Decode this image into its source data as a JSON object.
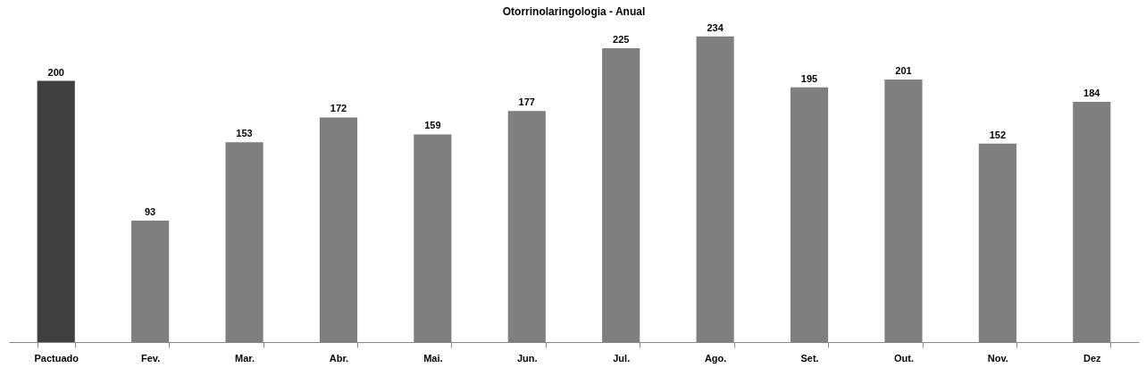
{
  "chart_data": {
    "type": "bar",
    "title": "Otorrinolaringologia - Anual",
    "categories": [
      "Pactuado",
      "Fev.",
      "Mar.",
      "Abr.",
      "Mai.",
      "Jun.",
      "Jul.",
      "Ago.",
      "Set.",
      "Out.",
      "Nov.",
      "Dez"
    ],
    "values": [
      200,
      93,
      153,
      172,
      159,
      177,
      225,
      234,
      195,
      201,
      152,
      184
    ],
    "colors": [
      "#404040",
      "#7f7f7f",
      "#7f7f7f",
      "#7f7f7f",
      "#7f7f7f",
      "#7f7f7f",
      "#7f7f7f",
      "#7f7f7f",
      "#7f7f7f",
      "#7f7f7f",
      "#7f7f7f",
      "#7f7f7f"
    ],
    "data_labels": true
  }
}
